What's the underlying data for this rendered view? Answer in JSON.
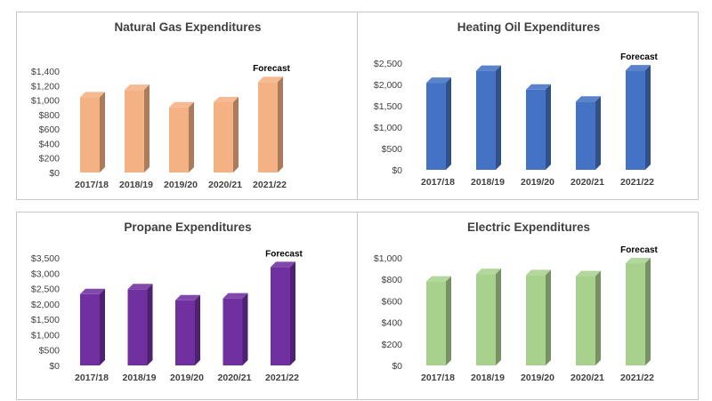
{
  "chart_data": [
    {
      "type": "bar",
      "title": "Natural Gas Expenditures",
      "categories": [
        "2017/18",
        "2018/19",
        "2019/20",
        "2020/21",
        "2021/22"
      ],
      "values": [
        1040,
        1140,
        900,
        970,
        1250
      ],
      "yticks": [
        "$0",
        "$200",
        "$400",
        "$600",
        "$800",
        "$1,000",
        "$1,200",
        "$1,400"
      ],
      "ylim": [
        0,
        1400
      ],
      "annotation": {
        "label": "Forecast",
        "category": "2021/22"
      },
      "color": "#F4B183",
      "grid": false,
      "legend": "none"
    },
    {
      "type": "bar",
      "title": "Heating Oil Expenditures",
      "categories": [
        "2017/18",
        "2018/19",
        "2019/20",
        "2020/21",
        "2021/22"
      ],
      "values": [
        2040,
        2320,
        1880,
        1600,
        2330
      ],
      "yticks": [
        "$0",
        "$500",
        "$1,000",
        "$1,500",
        "$2,000",
        "$2,500"
      ],
      "ylim": [
        0,
        2500
      ],
      "annotation": {
        "label": "Forecast",
        "category": "2021/22"
      },
      "color": "#4472C4",
      "grid": false,
      "legend": "none"
    },
    {
      "type": "bar",
      "title": "Propane Expenditures",
      "categories": [
        "2017/18",
        "2018/19",
        "2019/20",
        "2020/21",
        "2021/22"
      ],
      "values": [
        2320,
        2480,
        2120,
        2180,
        3200
      ],
      "yticks": [
        "$0",
        "$500",
        "$1,000",
        "$1,500",
        "$2,000",
        "$2,500",
        "$3,000",
        "$3,500"
      ],
      "ylim": [
        0,
        3500
      ],
      "annotation": {
        "label": "Forecast",
        "category": "2021/22"
      },
      "color": "#7030A0",
      "grid": false,
      "legend": "none"
    },
    {
      "type": "bar",
      "title": "Electric Expenditures",
      "categories": [
        "2017/18",
        "2018/19",
        "2019/20",
        "2020/21",
        "2021/22"
      ],
      "values": [
        780,
        850,
        840,
        830,
        950
      ],
      "yticks": [
        "$0",
        "$200",
        "$400",
        "$600",
        "$800",
        "$1,000"
      ],
      "ylim": [
        0,
        1000
      ],
      "annotation": {
        "label": "Forecast",
        "category": "2021/22"
      },
      "color": "#A9D18E",
      "grid": false,
      "legend": "none"
    }
  ]
}
